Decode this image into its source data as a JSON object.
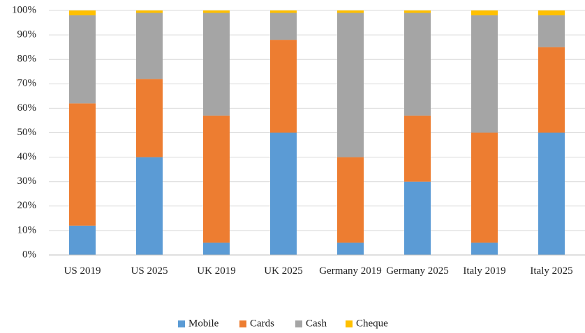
{
  "chart_data": {
    "type": "stacked_bar",
    "categories": [
      "US 2019",
      "US 2025",
      "UK 2019",
      "UK 2025",
      "Germany 2019",
      "Germany 2025",
      "Italy 2019",
      "Italy 2025"
    ],
    "series": [
      {
        "name": "Mobile",
        "color": "#5b9bd5",
        "values": [
          12,
          40,
          5,
          50,
          5,
          30,
          5,
          50
        ]
      },
      {
        "name": "Cards",
        "color": "#ed7d31",
        "values": [
          50,
          32,
          52,
          38,
          35,
          27,
          45,
          35
        ]
      },
      {
        "name": "Cash",
        "color": "#a5a5a5",
        "values": [
          36,
          27,
          42,
          11,
          59,
          42,
          48,
          13
        ]
      },
      {
        "name": "Cheque",
        "color": "#ffc000",
        "values": [
          2,
          1,
          1,
          1,
          1,
          1,
          2,
          2
        ]
      }
    ],
    "ylim": [
      0,
      100
    ],
    "yticks": [
      {
        "value": 0,
        "label": "0%"
      },
      {
        "value": 10,
        "label": "10%"
      },
      {
        "value": 20,
        "label": "20%"
      },
      {
        "value": 30,
        "label": "30%"
      },
      {
        "value": 40,
        "label": "40%"
      },
      {
        "value": 50,
        "label": "50%"
      },
      {
        "value": 60,
        "label": "60%"
      },
      {
        "value": 70,
        "label": "70%"
      },
      {
        "value": 80,
        "label": "80%"
      },
      {
        "value": 90,
        "label": "90%"
      },
      {
        "value": 100,
        "label": "100%"
      }
    ],
    "grid": true,
    "legend": "bottom"
  }
}
